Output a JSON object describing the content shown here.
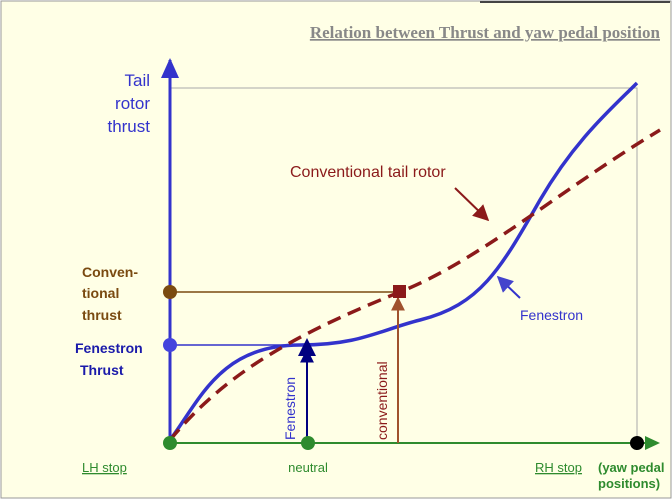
{
  "title": "Relation between Thrust and yaw pedal position",
  "y_axis_label": [
    "Tail",
    "rotor",
    "thrust"
  ],
  "conventional_thrust_label": [
    "Conven-",
    "tional",
    "thrust"
  ],
  "fenestron_thrust_label": [
    "Fenestron",
    "Thrust"
  ],
  "x_labels": {
    "lh_stop": "LH stop",
    "neutral": "neutral",
    "rh_stop": "RH stop",
    "rh_note": [
      "(yaw pedal",
      "positions)"
    ]
  },
  "curve_labels": {
    "conventional": "Conventional tail rotor",
    "fenestron": "Fenestron"
  },
  "arrow_labels": {
    "fenestron": "Fenestron",
    "conventional": "conventional"
  }
}
